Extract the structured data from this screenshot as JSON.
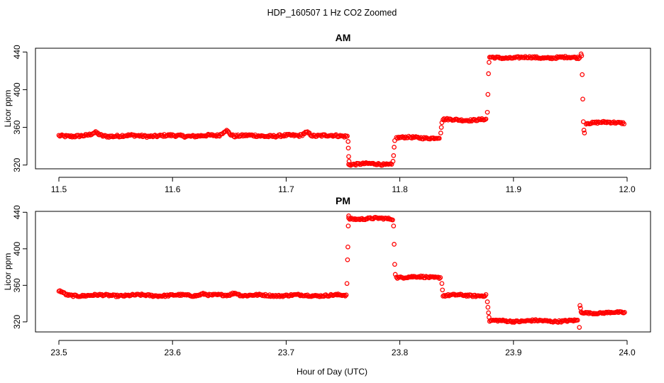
{
  "figure": {
    "main_title": "HDP_160507  1 Hz CO2 Zoomed",
    "xlabel": "Hour of Day (UTC)",
    "point_color": "#ff0000",
    "marker": "open-circle"
  },
  "chart_data": [
    {
      "type": "scatter",
      "title": "AM",
      "xlabel": "",
      "ylabel": "Licor ppm",
      "xlim": [
        11.5,
        12.0
      ],
      "ylim": [
        316,
        444
      ],
      "x_ticks": [
        "11.5",
        "11.6",
        "11.7",
        "11.8",
        "11.9",
        "12.0"
      ],
      "y_ticks": [
        "320",
        "360",
        "400",
        "440"
      ],
      "grid": false,
      "segments": [
        {
          "x_start": 11.5,
          "x_end": 11.754,
          "y": 351,
          "noise": 1.2
        },
        {
          "x_start": 11.755,
          "x_end": 11.793,
          "y": 321,
          "noise": 1.0
        },
        {
          "x_start": 11.797,
          "x_end": 11.835,
          "y": 349,
          "noise": 1.0
        },
        {
          "x_start": 11.838,
          "x_end": 11.876,
          "y": 368,
          "noise": 1.0
        },
        {
          "x_start": 11.879,
          "x_end": 11.959,
          "y": 434,
          "noise": 1.0
        },
        {
          "x_start": 11.964,
          "x_end": 11.998,
          "y": 365,
          "noise": 1.0
        }
      ],
      "bumps": [
        {
          "x": 11.532,
          "dy": 3
        },
        {
          "x": 11.647,
          "dy": 6
        },
        {
          "x": 11.718,
          "dy": 4
        }
      ],
      "transitions": [
        {
          "x": 11.7545,
          "y": 345
        },
        {
          "x": 11.7547,
          "y": 338
        },
        {
          "x": 11.755,
          "y": 329
        },
        {
          "x": 11.7553,
          "y": 324
        },
        {
          "x": 11.794,
          "y": 324
        },
        {
          "x": 11.7945,
          "y": 330
        },
        {
          "x": 11.795,
          "y": 339
        },
        {
          "x": 11.7955,
          "y": 346
        },
        {
          "x": 11.836,
          "y": 354
        },
        {
          "x": 11.8365,
          "y": 360
        },
        {
          "x": 11.837,
          "y": 365
        },
        {
          "x": 11.877,
          "y": 376
        },
        {
          "x": 11.8775,
          "y": 395
        },
        {
          "x": 11.878,
          "y": 417
        },
        {
          "x": 11.8785,
          "y": 429
        },
        {
          "x": 11.9595,
          "y": 438
        },
        {
          "x": 11.96,
          "y": 436
        },
        {
          "x": 11.9605,
          "y": 416
        },
        {
          "x": 11.961,
          "y": 390
        },
        {
          "x": 11.9615,
          "y": 366
        },
        {
          "x": 11.962,
          "y": 357
        },
        {
          "x": 11.9625,
          "y": 354
        }
      ]
    },
    {
      "type": "scatter",
      "title": "PM",
      "xlabel": "",
      "ylabel": "Licor ppm",
      "xlim": [
        23.5,
        24.0
      ],
      "ylim": [
        309,
        441
      ],
      "x_ticks": [
        "23.5",
        "23.6",
        "23.7",
        "23.8",
        "23.9",
        "24.0"
      ],
      "y_ticks": [
        "320",
        "360",
        "400",
        "440"
      ],
      "grid": false,
      "segments": [
        {
          "x_start": 23.5,
          "x_end": 23.753,
          "y": 349,
          "noise": 1.0
        },
        {
          "x_start": 23.755,
          "x_end": 23.794,
          "y": 433,
          "noise": 1.0
        },
        {
          "x_start": 23.797,
          "x_end": 23.836,
          "y": 369,
          "noise": 1.0
        },
        {
          "x_start": 23.838,
          "x_end": 23.876,
          "y": 349,
          "noise": 1.0
        },
        {
          "x_start": 23.879,
          "x_end": 23.957,
          "y": 321,
          "noise": 1.0
        },
        {
          "x_start": 23.96,
          "x_end": 23.998,
          "y": 330,
          "noise": 0.8
        }
      ],
      "bumps": [
        {
          "x": 23.501,
          "dy": 4
        },
        {
          "x": 23.627,
          "dy": 2
        },
        {
          "x": 23.655,
          "dy": 3
        }
      ],
      "transitions": [
        {
          "x": 23.7535,
          "y": 362
        },
        {
          "x": 23.754,
          "y": 388
        },
        {
          "x": 23.7543,
          "y": 402
        },
        {
          "x": 23.7546,
          "y": 425
        },
        {
          "x": 23.755,
          "y": 436
        },
        {
          "x": 23.7945,
          "y": 425
        },
        {
          "x": 23.795,
          "y": 405
        },
        {
          "x": 23.7955,
          "y": 383
        },
        {
          "x": 23.796,
          "y": 372
        },
        {
          "x": 23.837,
          "y": 362
        },
        {
          "x": 23.8375,
          "y": 355
        },
        {
          "x": 23.877,
          "y": 342
        },
        {
          "x": 23.8775,
          "y": 336
        },
        {
          "x": 23.878,
          "y": 330
        },
        {
          "x": 23.8785,
          "y": 325
        },
        {
          "x": 23.958,
          "y": 314
        },
        {
          "x": 23.9585,
          "y": 338
        },
        {
          "x": 23.959,
          "y": 335
        },
        {
          "x": 23.9595,
          "y": 331
        }
      ]
    }
  ]
}
